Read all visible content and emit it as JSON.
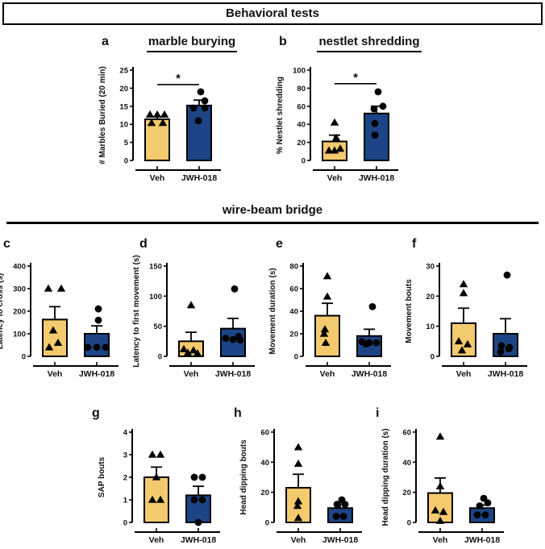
{
  "banner": {
    "title": "Behavioral tests"
  },
  "section": {
    "title": "wire-beam bridge"
  },
  "colors": {
    "veh": "#F3CA6D",
    "jwh": "#1D4586",
    "point": "#000000",
    "axis": "#000000"
  },
  "chart_data": [
    {
      "panel": "a",
      "type": "bar",
      "title": "marble burying",
      "ylabel": "# Marbles Buried (20 min)",
      "ylim": [
        0,
        25
      ],
      "yticks": [
        0,
        5,
        10,
        15,
        20,
        25
      ],
      "categories": [
        "Veh",
        "JWH-018"
      ],
      "series": [
        {
          "name": "Veh",
          "mean": 11.4,
          "sem": 0.7,
          "marker": "triangle",
          "points": [
            12.7,
            12.7,
            12.7,
            10.4,
            10.4
          ],
          "dx": [
            -9,
            0,
            9,
            -7,
            7
          ]
        },
        {
          "name": "JWH-018",
          "mean": 15.2,
          "sem": 1.5,
          "marker": "circle",
          "points": [
            19,
            16.5,
            14.5,
            14.5,
            11
          ],
          "dx": [
            2,
            7,
            -7,
            7,
            -1
          ]
        }
      ],
      "significance": {
        "label": "*",
        "y": 21
      }
    },
    {
      "panel": "b",
      "type": "bar",
      "title": "nestlet shredding",
      "ylabel": "% Nestlet shredding",
      "ylim": [
        0,
        100
      ],
      "yticks": [
        0,
        20,
        40,
        60,
        80,
        100
      ],
      "categories": [
        "Veh",
        "JWH-018"
      ],
      "series": [
        {
          "name": "Veh",
          "mean": 21,
          "sem": 7,
          "marker": "triangle",
          "points": [
            42,
            25,
            13,
            11,
            11
          ],
          "dx": [
            0,
            2,
            7,
            -7,
            0
          ]
        },
        {
          "name": "JWH-018",
          "mean": 52,
          "sem": 8,
          "marker": "circle",
          "points": [
            76,
            60,
            57,
            41,
            28
          ],
          "dx": [
            2,
            8,
            -3,
            -2,
            -2
          ]
        }
      ],
      "significance": {
        "label": "*",
        "y": 85
      }
    },
    {
      "panel": "c",
      "type": "bar",
      "title": null,
      "ylabel": "Latency to cross (s)",
      "ylim": [
        0,
        400
      ],
      "yticks": [
        0,
        100,
        200,
        300,
        400
      ],
      "categories": [
        "Veh",
        "JWH-018"
      ],
      "series": [
        {
          "name": "Veh",
          "mean": 163,
          "sem": 57,
          "marker": "triangle",
          "points": [
            300,
            300,
            115,
            60,
            40
          ],
          "dx": [
            -8,
            8,
            -2,
            4,
            -7
          ]
        },
        {
          "name": "JWH-018",
          "mean": 100,
          "sem": 35,
          "marker": "circle",
          "points": [
            210,
            160,
            40,
            40,
            40
          ],
          "dx": [
            2,
            2,
            -11,
            0,
            11
          ]
        }
      ],
      "significance": null
    },
    {
      "panel": "d",
      "type": "bar",
      "title": null,
      "ylabel": "Latency to first movement  (s)",
      "ylim": [
        0,
        150
      ],
      "yticks": [
        0,
        50,
        100,
        150
      ],
      "categories": [
        "Veh",
        "JWH-018"
      ],
      "series": [
        {
          "name": "Veh",
          "mean": 25,
          "sem": 15,
          "marker": "triangle",
          "points": [
            85,
            12,
            10,
            6,
            5
          ],
          "dx": [
            0,
            -9,
            3,
            -4,
            8
          ]
        },
        {
          "name": "JWH-018",
          "mean": 46,
          "sem": 17,
          "marker": "circle",
          "points": [
            112,
            33,
            30,
            28,
            27
          ],
          "dx": [
            2,
            7,
            -9,
            0,
            9
          ]
        }
      ],
      "significance": null
    },
    {
      "panel": "e",
      "type": "bar",
      "title": null,
      "ylabel": "Movement duration (s)",
      "ylim": [
        0,
        80
      ],
      "yticks": [
        0,
        20,
        40,
        60,
        80
      ],
      "categories": [
        "Veh",
        "JWH-018"
      ],
      "series": [
        {
          "name": "Veh",
          "mean": 36,
          "sem": 11,
          "marker": "triangle",
          "points": [
            71,
            53,
            24,
            20,
            12
          ],
          "dx": [
            0,
            0,
            -3,
            -4,
            -2
          ]
        },
        {
          "name": "JWH-018",
          "mean": 18,
          "sem": 6,
          "marker": "circle",
          "points": [
            44,
            13,
            12,
            12,
            11
          ],
          "dx": [
            4,
            -9,
            0,
            9,
            -4
          ]
        }
      ],
      "significance": null
    },
    {
      "panel": "f",
      "type": "bar",
      "title": null,
      "ylabel": "Movement bouts",
      "ylim": [
        0,
        30
      ],
      "yticks": [
        0,
        10,
        20,
        30
      ],
      "categories": [
        "Veh",
        "JWH-018"
      ],
      "series": [
        {
          "name": "Veh",
          "mean": 11,
          "sem": 5,
          "marker": "triangle",
          "points": [
            24,
            21,
            5,
            4,
            2
          ],
          "dx": [
            0,
            0,
            -6,
            5,
            -2
          ]
        },
        {
          "name": "JWH-018",
          "mean": 7.5,
          "sem": 5,
          "marker": "circle",
          "points": [
            27,
            3.5,
            3,
            2.5,
            1.5
          ],
          "dx": [
            2,
            -5,
            5,
            4,
            -6
          ]
        }
      ],
      "significance": null
    },
    {
      "panel": "g",
      "type": "bar",
      "title": null,
      "ylabel": "SAP bouts",
      "ylim": [
        0,
        4
      ],
      "yticks": [
        0,
        1,
        2,
        3,
        4
      ],
      "categories": [
        "Veh",
        "JWH-018"
      ],
      "series": [
        {
          "name": "Veh",
          "mean": 2,
          "sem": 0.45,
          "marker": "triangle",
          "points": [
            3,
            3,
            2,
            1,
            1
          ],
          "dx": [
            -5,
            5,
            0,
            -5,
            5
          ]
        },
        {
          "name": "JWH-018",
          "mean": 1.2,
          "sem": 0.4,
          "marker": "circle",
          "points": [
            2,
            2,
            1,
            1,
            0
          ],
          "dx": [
            -5,
            5,
            -5,
            5,
            0
          ]
        }
      ],
      "significance": null
    },
    {
      "panel": "h",
      "type": "bar",
      "title": null,
      "ylabel": "Head dipping bouts",
      "ylim": [
        0,
        60
      ],
      "yticks": [
        0,
        20,
        40,
        60
      ],
      "categories": [
        "Veh",
        "JWH-018"
      ],
      "series": [
        {
          "name": "Veh",
          "mean": 23,
          "sem": 9,
          "marker": "triangle",
          "points": [
            50,
            39,
            14,
            11,
            3
          ],
          "dx": [
            0,
            0,
            0,
            -1,
            0
          ]
        },
        {
          "name": "JWH-018",
          "mean": 9.5,
          "sem": 2.5,
          "marker": "circle",
          "points": [
            15,
            12,
            12,
            4,
            4
          ],
          "dx": [
            2,
            -4,
            6,
            -5,
            4
          ]
        }
      ],
      "significance": null
    },
    {
      "panel": "i",
      "type": "bar",
      "title": null,
      "ylabel": "Head dipping duration (s)",
      "ylim": [
        0,
        60
      ],
      "yticks": [
        0,
        20,
        40,
        60
      ],
      "categories": [
        "Veh",
        "JWH-018"
      ],
      "series": [
        {
          "name": "Veh",
          "mean": 19.5,
          "sem": 10,
          "marker": "triangle",
          "points": [
            57,
            24,
            8,
            7,
            1
          ],
          "dx": [
            0,
            0,
            -6,
            4,
            0
          ]
        },
        {
          "name": "JWH-018",
          "mean": 9.5,
          "sem": 2,
          "marker": "circle",
          "points": [
            16,
            13,
            11,
            5,
            5
          ],
          "dx": [
            2,
            7,
            -3,
            -6,
            4
          ]
        }
      ],
      "significance": null
    }
  ]
}
